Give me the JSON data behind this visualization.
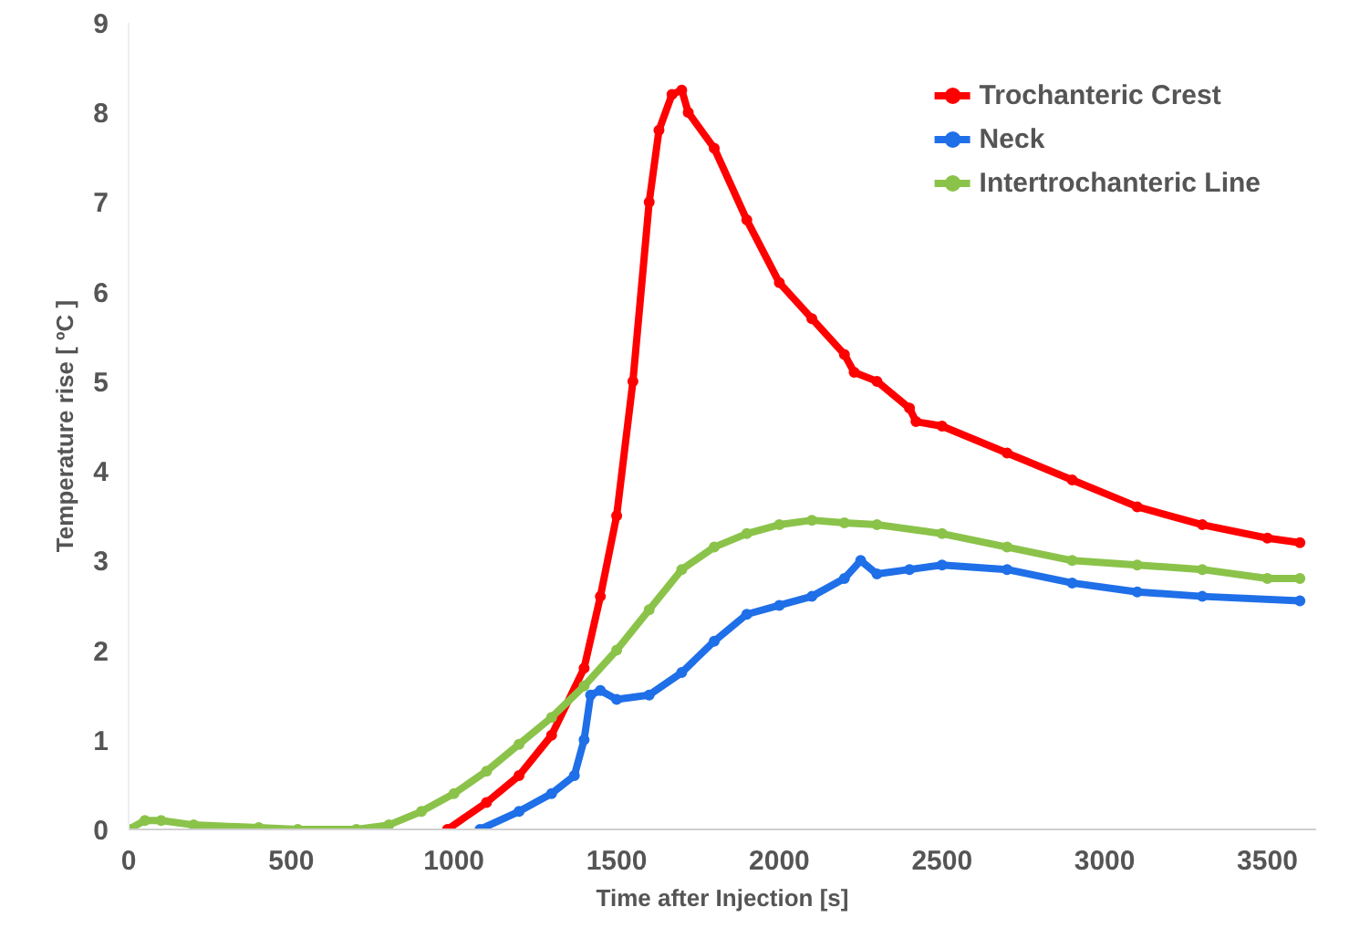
{
  "chart_data": {
    "type": "line",
    "xlabel": "Time after Injection [s]",
    "ylabel": "Temperature rise [ ºC ]",
    "xlim": [
      0,
      3650
    ],
    "ylim": [
      0,
      9
    ],
    "xticks": [
      0,
      500,
      1000,
      1500,
      2000,
      2500,
      3000,
      3500
    ],
    "yticks": [
      0,
      1,
      2,
      3,
      4,
      5,
      6,
      7,
      8,
      9
    ],
    "grid": false,
    "legend": "top right",
    "marker": "circle",
    "line_style": "solid",
    "series": [
      {
        "name": "Trochanteric Crest",
        "color": "#ff0000",
        "x": [
          980,
          1100,
          1200,
          1300,
          1400,
          1450,
          1500,
          1550,
          1600,
          1630,
          1670,
          1700,
          1720,
          1800,
          1900,
          2000,
          2100,
          2200,
          2230,
          2300,
          2400,
          2420,
          2500,
          2700,
          2900,
          3100,
          3300,
          3500,
          3600
        ],
        "values": [
          0,
          0.3,
          0.6,
          1.05,
          1.8,
          2.6,
          3.5,
          5.0,
          7.0,
          7.8,
          8.2,
          8.25,
          8.0,
          7.6,
          6.8,
          6.1,
          5.7,
          5.3,
          5.1,
          5.0,
          4.7,
          4.55,
          4.5,
          4.2,
          3.9,
          3.6,
          3.4,
          3.25,
          3.2
        ]
      },
      {
        "name": "Neck",
        "color": "#1f6fe8",
        "x": [
          1080,
          1200,
          1300,
          1370,
          1400,
          1420,
          1450,
          1500,
          1600,
          1700,
          1800,
          1900,
          2000,
          2100,
          2200,
          2250,
          2300,
          2400,
          2500,
          2700,
          2900,
          3100,
          3300,
          3600
        ],
        "values": [
          0,
          0.2,
          0.4,
          0.6,
          1.0,
          1.5,
          1.55,
          1.45,
          1.5,
          1.75,
          2.1,
          2.4,
          2.5,
          2.6,
          2.8,
          3.0,
          2.85,
          2.9,
          2.95,
          2.9,
          2.75,
          2.65,
          2.6,
          2.55
        ]
      },
      {
        "name": "Intertrochanteric Line",
        "color": "#8bc34a",
        "x": [
          0,
          50,
          100,
          200,
          400,
          520,
          700,
          800,
          900,
          1000,
          1100,
          1200,
          1300,
          1400,
          1500,
          1600,
          1700,
          1800,
          1900,
          2000,
          2100,
          2200,
          2300,
          2500,
          2700,
          2900,
          3100,
          3300,
          3500,
          3600
        ],
        "values": [
          0,
          0.1,
          0.1,
          0.05,
          0.02,
          0,
          0,
          0.05,
          0.2,
          0.4,
          0.65,
          0.95,
          1.25,
          1.6,
          2.0,
          2.45,
          2.9,
          3.15,
          3.3,
          3.4,
          3.45,
          3.42,
          3.4,
          3.3,
          3.15,
          3.0,
          2.95,
          2.9,
          2.8,
          2.8
        ]
      }
    ]
  }
}
